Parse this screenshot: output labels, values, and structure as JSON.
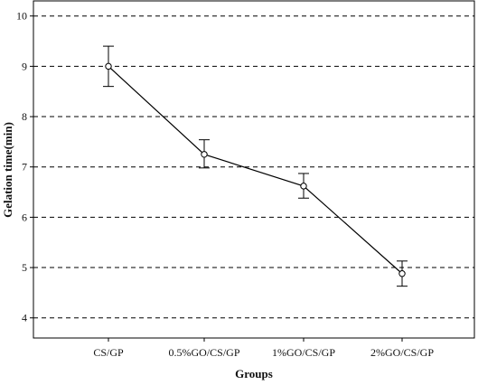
{
  "chart_data": {
    "type": "line",
    "title": "",
    "xlabel": "Groups",
    "ylabel": "Gelation time(min)",
    "categories": [
      "CS/GP",
      "0.5%GO/CS/GP",
      "1%GO/CS/GP",
      "2%GO/CS/GP"
    ],
    "series": [
      {
        "values": [
          9.0,
          7.25,
          6.62,
          4.88
        ],
        "error_low": [
          8.6,
          6.98,
          6.38,
          4.63
        ],
        "error_high": [
          9.4,
          7.54,
          6.87,
          5.13
        ],
        "marker": "open-circle",
        "color": "#000000"
      }
    ],
    "ylim": [
      3.6,
      10.3
    ],
    "yticks": [
      4,
      5,
      6,
      7,
      8,
      9,
      10
    ],
    "grid": "horizontal-dashed",
    "legend": "none"
  }
}
